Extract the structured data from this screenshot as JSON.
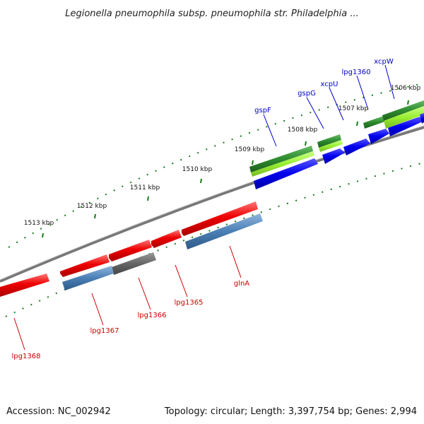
{
  "title": "Legionella pneumophila subsp. pneumophila str. Philadelphia ...",
  "footer": {
    "accession": "Accession: NC_002942",
    "summary": "Topology: circular; Length: 3,397,754 bp; Genes: 2,994"
  },
  "scale_labels": [
    "1506 kbp",
    "1507 kbp",
    "1508 kbp",
    "1509 kbp",
    "1510 kbp",
    "1511 kbp",
    "1512 kbp",
    "1513 kbp"
  ],
  "top_genes": [
    "xcpW",
    "lpg1360",
    "xcpU",
    "gspG",
    "gspF"
  ],
  "bottom_genes": [
    "glnA",
    "lpg1365",
    "lpg1366",
    "lpg1367",
    "lpg1368"
  ],
  "colors": {
    "forward_label": "#0000cc",
    "reverse_label": "#cc0000",
    "backbone": "#888888",
    "tick": "#1a7a1a",
    "red_feature": "#ee1111",
    "steelblue_feature": "#4a7fb5",
    "blue_feature": "#0000ee",
    "green_feature": "#2e8b2e",
    "lime_feature": "#99ee33",
    "gray_feature": "#666666"
  }
}
